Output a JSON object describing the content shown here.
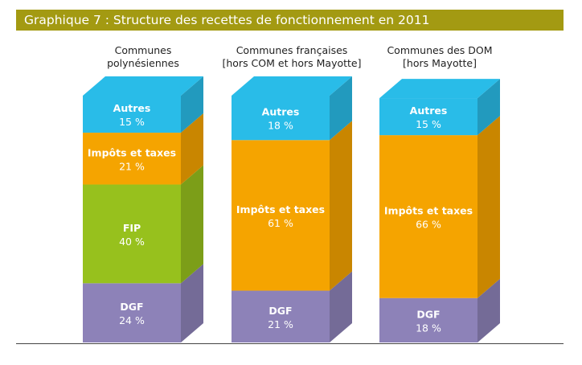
{
  "title": "Graphique 7 : Structure des recettes de fonctionnement en 2011",
  "colors": {
    "title_bar": "#a39a12",
    "autres": "#29bce8",
    "impots": "#f5a400",
    "fip": "#97c11d",
    "dgf": "#8d82b8"
  },
  "chart_data": {
    "type": "bar",
    "stacked": true,
    "unit": "%",
    "categories": [
      [
        "Communes",
        "polynésiennes"
      ],
      [
        "Communes françaises",
        "[hors COM et hors Mayotte]"
      ],
      [
        "Communes des DOM",
        "[hors Mayotte]"
      ]
    ],
    "series": [
      {
        "name": "DGF",
        "color_key": "dgf",
        "values": [
          24,
          21,
          18
        ],
        "labels": [
          "24 %",
          "21 %",
          "18 %"
        ]
      },
      {
        "name": "FIP",
        "color_key": "fip",
        "values": [
          40,
          0,
          0
        ],
        "labels": [
          "40 %",
          "",
          ""
        ]
      },
      {
        "name": "Impôts et taxes",
        "color_key": "impots",
        "values": [
          21,
          61,
          66
        ],
        "labels": [
          "21 %",
          "61 %",
          "66 %"
        ]
      },
      {
        "name": "Autres",
        "color_key": "autres",
        "values": [
          15,
          18,
          15
        ],
        "labels": [
          "15 %",
          "18 %",
          "15 %"
        ]
      }
    ],
    "ylim": [
      0,
      100
    ]
  }
}
